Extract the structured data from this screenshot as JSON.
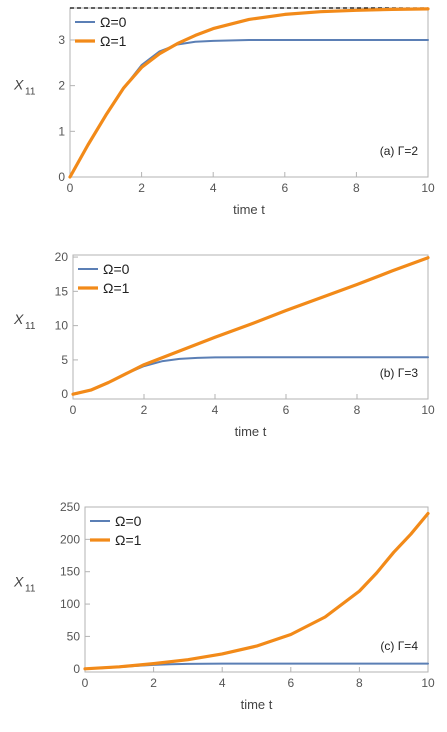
{
  "chart_data": [
    {
      "type": "line",
      "panel_label": "(a) Γ=2",
      "xlabel": "time t",
      "ylabel": "X",
      "ylabel_sub": "11",
      "xlim": [
        0,
        10
      ],
      "ylim": [
        0,
        3.7
      ],
      "xticks": [
        0,
        2,
        4,
        6,
        8,
        10
      ],
      "yticks": [
        0,
        1,
        2,
        3
      ],
      "reference_line": {
        "y": 3.7,
        "style": "dashed",
        "color": "#000000"
      },
      "legend_position": "top-left",
      "series": [
        {
          "name": "Ω=0",
          "color": "#5b7fb5",
          "width": 2,
          "x": [
            0,
            0.5,
            1,
            1.5,
            2,
            2.5,
            3,
            3.5,
            4,
            5,
            6,
            7,
            8,
            9,
            10
          ],
          "y": [
            0,
            0.7,
            1.35,
            1.95,
            2.45,
            2.75,
            2.9,
            2.96,
            2.98,
            3.0,
            3.0,
            3.0,
            3.0,
            3.0,
            3.0
          ]
        },
        {
          "name": "Ω=1",
          "color": "#f28a19",
          "width": 3.2,
          "x": [
            0,
            0.5,
            1,
            1.5,
            2,
            2.5,
            3,
            3.5,
            4,
            5,
            6,
            7,
            8,
            9,
            10
          ],
          "y": [
            0,
            0.7,
            1.35,
            1.95,
            2.4,
            2.7,
            2.92,
            3.1,
            3.25,
            3.45,
            3.56,
            3.62,
            3.65,
            3.67,
            3.68
          ]
        }
      ]
    },
    {
      "type": "line",
      "panel_label": "(b) Γ=3",
      "xlabel": "time t",
      "ylabel": "X",
      "ylabel_sub": "11",
      "xlim": [
        0,
        10
      ],
      "ylim": [
        -0.7,
        20.3
      ],
      "xticks": [
        0,
        2,
        4,
        6,
        8,
        10
      ],
      "yticks": [
        0,
        5,
        10,
        15,
        20
      ],
      "legend_position": "top-left",
      "series": [
        {
          "name": "Ω=0",
          "color": "#5b7fb5",
          "width": 2,
          "x": [
            0,
            0.5,
            1,
            1.5,
            2,
            2.5,
            3,
            3.5,
            4,
            5,
            6,
            7,
            8,
            9,
            10
          ],
          "y": [
            0,
            0.6,
            1.7,
            3.0,
            4.1,
            4.8,
            5.15,
            5.3,
            5.37,
            5.4,
            5.4,
            5.4,
            5.4,
            5.4,
            5.4
          ]
        },
        {
          "name": "Ω=1",
          "color": "#f28a19",
          "width": 3.2,
          "x": [
            0,
            0.5,
            1,
            1.5,
            2,
            3,
            4,
            5,
            6,
            7,
            8,
            9,
            10
          ],
          "y": [
            0,
            0.6,
            1.7,
            3.0,
            4.3,
            6.3,
            8.3,
            10.2,
            12.2,
            14.1,
            16.0,
            18.0,
            19.9
          ]
        }
      ]
    },
    {
      "type": "line",
      "panel_label": "(c) Γ=4",
      "xlabel": "time t",
      "ylabel": "X",
      "ylabel_sub": "11",
      "xlim": [
        0,
        10
      ],
      "ylim": [
        -5,
        250
      ],
      "xticks": [
        0,
        2,
        4,
        6,
        8,
        10
      ],
      "yticks": [
        0,
        50,
        100,
        150,
        200,
        250
      ],
      "legend_position": "top-left",
      "series": [
        {
          "name": "Ω=0",
          "color": "#5b7fb5",
          "width": 2,
          "x": [
            0,
            0.5,
            1,
            1.5,
            2,
            2.5,
            3,
            4,
            5,
            6,
            7,
            8,
            9,
            10
          ],
          "y": [
            0,
            1,
            2.5,
            4.5,
            6,
            7,
            7.5,
            8,
            8,
            8,
            8,
            8,
            8,
            8
          ]
        },
        {
          "name": "Ω=1",
          "color": "#f28a19",
          "width": 3.2,
          "x": [
            0,
            1,
            2,
            3,
            4,
            5,
            6,
            7,
            8,
            8.5,
            9,
            9.5,
            10
          ],
          "y": [
            0,
            3,
            8,
            14,
            23,
            35,
            53,
            80,
            120,
            148,
            180,
            208,
            240
          ]
        }
      ]
    }
  ]
}
